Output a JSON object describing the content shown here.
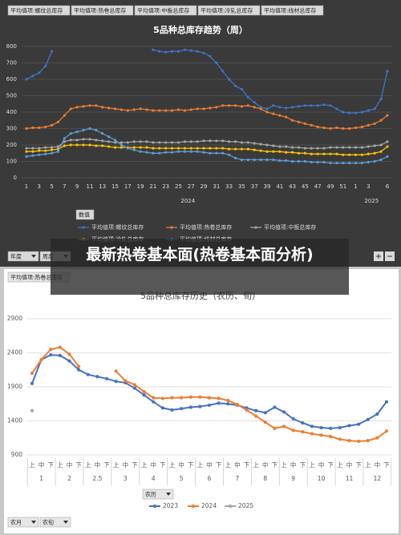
{
  "chart_data": [
    {
      "type": "line",
      "title": "5品种总库存趋势（周）",
      "filters": [
        "平均值项:螺纹总库存",
        "平均值项:热卷总库存",
        "平均值项:中板总库存",
        "平均值项:冷轧总库存",
        "平均值项:线材总库存"
      ],
      "value_button": "数值",
      "controls": [
        "年度",
        "周度"
      ],
      "categories": [
        "1",
        null,
        "3",
        null,
        "5",
        null,
        "7",
        null,
        "9",
        null,
        "11",
        null,
        "13",
        null,
        "15",
        null,
        "17",
        null,
        "19",
        null,
        "21",
        null,
        "23",
        null,
        "25",
        null,
        "27",
        null,
        "29",
        null,
        "31",
        null,
        "33",
        null,
        "35",
        null,
        "37",
        null,
        "39",
        null,
        "41",
        null,
        "43",
        null,
        "45",
        null,
        "47",
        null,
        "49",
        null,
        "51",
        null,
        "1",
        null,
        "3",
        null,
        null,
        "6"
      ],
      "x_groups": [
        {
          "label": "2024",
          "count": 52
        },
        {
          "label": "2025",
          "count": 6
        }
      ],
      "ylim": [
        0,
        800
      ],
      "yticks": [
        0,
        100,
        200,
        300,
        400,
        500,
        600,
        700,
        800
      ],
      "grid": true,
      "series": [
        {
          "name": "平均值项:螺纹总库存",
          "color": "#4472c4",
          "values": [
            600,
            620,
            640,
            680,
            770,
            null,
            null,
            null,
            null,
            null,
            null,
            null,
            null,
            null,
            null,
            null,
            null,
            null,
            null,
            null,
            780,
            770,
            765,
            770,
            770,
            780,
            775,
            770,
            760,
            740,
            700,
            650,
            600,
            560,
            540,
            490,
            460,
            430,
            420,
            440,
            430,
            425,
            430,
            435,
            440,
            440,
            440,
            445,
            440,
            420,
            400,
            395,
            395,
            400,
            410,
            420,
            480,
            650
          ]
        },
        {
          "name": "平均值项:热卷总库存",
          "color": "#ed7d31",
          "values": [
            300,
            305,
            305,
            310,
            320,
            340,
            380,
            420,
            430,
            435,
            440,
            440,
            430,
            425,
            420,
            415,
            410,
            415,
            420,
            415,
            410,
            410,
            410,
            410,
            415,
            410,
            415,
            420,
            420,
            425,
            430,
            440,
            440,
            440,
            435,
            440,
            430,
            420,
            400,
            390,
            380,
            370,
            350,
            340,
            330,
            320,
            310,
            305,
            300,
            305,
            300,
            300,
            305,
            310,
            320,
            330,
            350,
            380
          ]
        },
        {
          "name": "平均值项:中板总库存",
          "color": "#a5a5a5",
          "values": [
            180,
            180,
            180,
            185,
            185,
            190,
            220,
            230,
            230,
            235,
            235,
            230,
            225,
            220,
            215,
            215,
            215,
            220,
            220,
            220,
            215,
            215,
            215,
            215,
            215,
            220,
            220,
            220,
            225,
            225,
            225,
            225,
            220,
            220,
            215,
            215,
            210,
            205,
            200,
            195,
            190,
            190,
            185,
            185,
            180,
            180,
            180,
            180,
            185,
            185,
            185,
            185,
            185,
            185,
            190,
            195,
            200,
            220
          ]
        },
        {
          "name": "平均值项:冷轧总库存",
          "color": "#ffc000",
          "values": [
            160,
            160,
            165,
            165,
            170,
            175,
            195,
            200,
            200,
            200,
            200,
            195,
            195,
            190,
            185,
            185,
            185,
            185,
            185,
            185,
            180,
            180,
            180,
            180,
            180,
            180,
            180,
            180,
            180,
            180,
            180,
            180,
            175,
            175,
            175,
            175,
            170,
            165,
            160,
            160,
            160,
            155,
            155,
            150,
            150,
            145,
            145,
            145,
            145,
            145,
            140,
            140,
            140,
            140,
            145,
            150,
            160,
            190
          ]
        },
        {
          "name": "平均值项:线材总库存",
          "color": "#5b9bd5",
          "values": [
            130,
            135,
            140,
            145,
            150,
            160,
            240,
            270,
            280,
            290,
            300,
            290,
            270,
            250,
            230,
            200,
            180,
            170,
            160,
            155,
            150,
            150,
            155,
            155,
            160,
            160,
            160,
            160,
            155,
            150,
            150,
            150,
            140,
            120,
            110,
            110,
            110,
            110,
            110,
            110,
            105,
            105,
            100,
            100,
            100,
            95,
            95,
            95,
            90,
            90,
            90,
            90,
            90,
            90,
            95,
            100,
            110,
            130
          ]
        }
      ]
    },
    {
      "type": "line",
      "title": "5品种总库存历史（农历、旬）",
      "filters": [
        "平均值项:热卷总库存"
      ],
      "axis_button": "农历",
      "controls": [
        "农月",
        "农旬"
      ],
      "categories": [
        "上",
        "中",
        "下",
        "上",
        "中",
        "下",
        "上",
        "中",
        "下",
        "上",
        "中",
        "下",
        "上",
        "中",
        "下",
        "上",
        "中",
        "下",
        "上",
        "中",
        "下",
        "上",
        "中",
        "下",
        "上",
        "中",
        "下",
        "上",
        "中",
        "下",
        "上",
        "中",
        "下",
        "上",
        "中",
        "下",
        "上",
        "中",
        "下"
      ],
      "x_groups": [
        {
          "label": "1",
          "count": 3
        },
        {
          "label": "2",
          "count": 3
        },
        {
          "label": "2.5",
          "count": 3
        },
        {
          "label": "3",
          "count": 3
        },
        {
          "label": "4",
          "count": 3
        },
        {
          "label": "5",
          "count": 3
        },
        {
          "label": "6",
          "count": 3
        },
        {
          "label": "7",
          "count": 3
        },
        {
          "label": "8",
          "count": 3
        },
        {
          "label": "9",
          "count": 3
        },
        {
          "label": "10",
          "count": 3
        },
        {
          "label": "11",
          "count": 3
        },
        {
          "label": "12",
          "count": 3
        }
      ],
      "ylim": [
        900,
        2900
      ],
      "yticks": [
        900,
        1400,
        1900,
        2400,
        2900
      ],
      "grid": true,
      "series": [
        {
          "name": "2023",
          "color": "#4472c4",
          "values": [
            1950,
            2300,
            2370,
            2360,
            2280,
            2150,
            2080,
            2050,
            2020,
            1980,
            1960,
            1880,
            1780,
            1680,
            1590,
            1560,
            1580,
            1600,
            1610,
            1630,
            1660,
            1650,
            1630,
            1590,
            1550,
            1520,
            1600,
            1530,
            1430,
            1370,
            1320,
            1300,
            1290,
            1300,
            1330,
            1350,
            1420,
            1500,
            1680
          ]
        },
        {
          "name": "2024",
          "color": "#ed7d31",
          "values": [
            2100,
            2300,
            2450,
            2480,
            2380,
            2200,
            null,
            null,
            null,
            2130,
            1990,
            1930,
            1830,
            1740,
            1730,
            1740,
            1740,
            1750,
            1750,
            1740,
            1730,
            1700,
            1640,
            1560,
            1470,
            1380,
            1290,
            1320,
            1260,
            1240,
            1210,
            1190,
            1170,
            1130,
            1110,
            1100,
            1110,
            1150,
            1250
          ]
        },
        {
          "name": "2025",
          "color": "#a5a5a5",
          "values": [
            1550,
            null,
            null,
            null,
            null,
            null,
            null,
            null,
            null,
            null,
            null,
            null,
            null,
            null,
            null,
            null,
            null,
            null,
            null,
            null,
            null,
            null,
            null,
            null,
            null,
            null,
            null,
            null,
            null,
            null,
            null,
            null,
            null,
            null,
            null,
            null,
            null,
            null,
            null
          ]
        }
      ]
    }
  ],
  "overlay_title": "最新热卷基本面(热卷基本面分析)"
}
